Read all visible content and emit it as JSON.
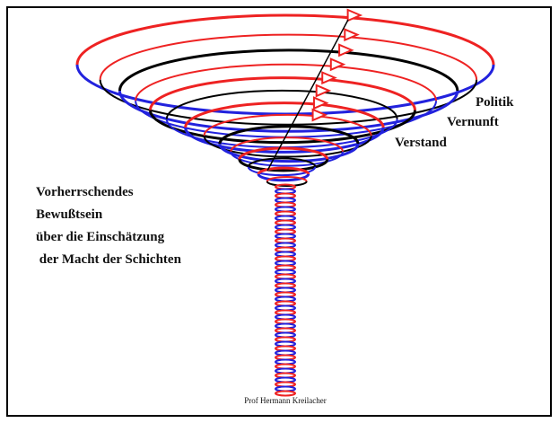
{
  "labels": {
    "politik": "Politik",
    "vernunft": "Vernunft",
    "verstand": "Verstand"
  },
  "caption": [
    "Vorherrschendes",
    "Bewußtsein",
    "über die Einschätzung",
    " der Macht der Schichten"
  ],
  "author": "Prof Hermann Kreilacher"
}
